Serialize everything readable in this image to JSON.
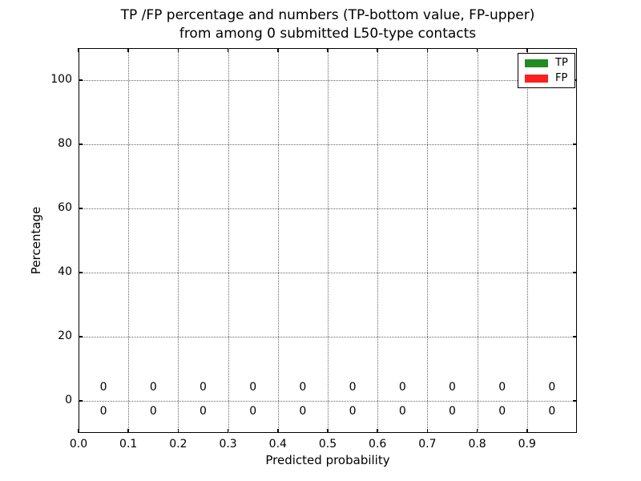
{
  "chart_data": {
    "type": "bar",
    "title": {
      "line1": "TP /FP percentage and numbers (TP-bottom value, FP-upper)",
      "line2": "from among 0 submitted L50-type contacts"
    },
    "xlabel": "Predicted probability",
    "ylabel": "Percentage",
    "xlim": [
      0.0,
      1.0
    ],
    "ylim": [
      -10,
      110
    ],
    "x_ticks": [
      0.0,
      0.1,
      0.2,
      0.3,
      0.4,
      0.5,
      0.6,
      0.7,
      0.8,
      0.9
    ],
    "x_tick_labels": [
      "0.0",
      "0.1",
      "0.2",
      "0.3",
      "0.4",
      "0.5",
      "0.6",
      "0.7",
      "0.8",
      "0.9"
    ],
    "y_ticks": [
      0,
      20,
      40,
      60,
      80,
      100
    ],
    "y_tick_labels": [
      "0",
      "20",
      "40",
      "60",
      "80",
      "100"
    ],
    "grid": "dotted",
    "legend_position": "upper right",
    "bin_centers": [
      0.05,
      0.15,
      0.25,
      0.35,
      0.45,
      0.55,
      0.65,
      0.75,
      0.85,
      0.95
    ],
    "series": [
      {
        "name": "TP",
        "color": "#228b22",
        "values": [
          0,
          0,
          0,
          0,
          0,
          0,
          0,
          0,
          0,
          0
        ]
      },
      {
        "name": "FP",
        "color": "#fb2020",
        "values": [
          0,
          0,
          0,
          0,
          0,
          0,
          0,
          0,
          0,
          0
        ]
      }
    ],
    "value_labels": {
      "upper": {
        "series": "FP",
        "y": 4,
        "labels": [
          "0",
          "0",
          "0",
          "0",
          "0",
          "0",
          "0",
          "0",
          "0",
          "0"
        ]
      },
      "lower": {
        "series": "TP",
        "y": -3.5,
        "labels": [
          "0",
          "0",
          "0",
          "0",
          "0",
          "0",
          "0",
          "0",
          "0",
          "0"
        ]
      }
    }
  },
  "colors": {
    "background": "#ffffff",
    "spine": "#000000",
    "grid": "#666666",
    "text": "#000000",
    "tp_green": "#228b22",
    "fp_red": "#fb2020"
  }
}
